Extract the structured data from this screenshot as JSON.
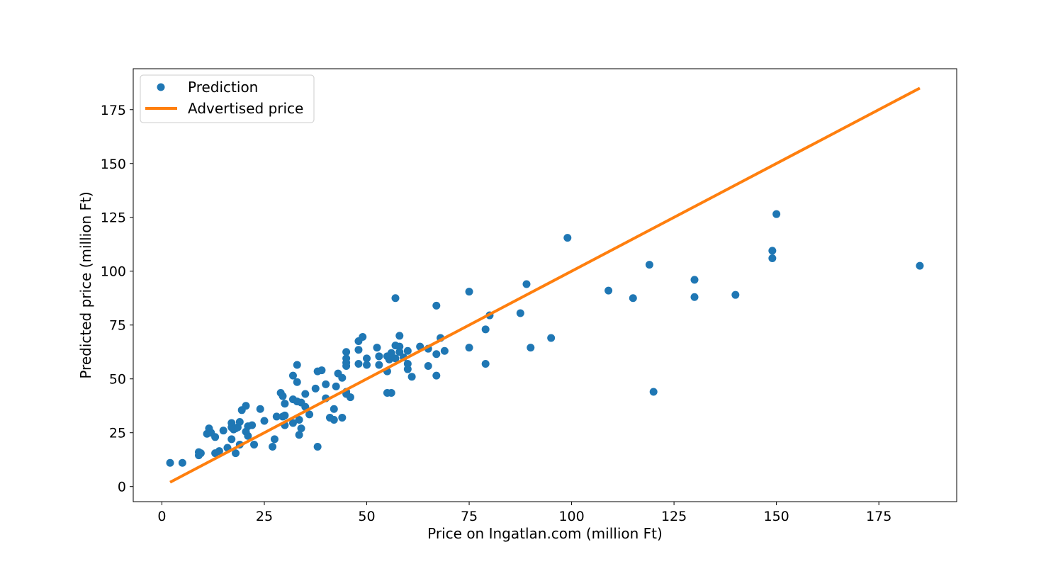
{
  "chart_data": {
    "type": "scatter",
    "title": "",
    "xlabel": "Price on Ingatlan.com (million Ft)",
    "ylabel": "Predicted price (million Ft)",
    "xlim": [
      -7,
      194
    ],
    "ylim": [
      -7,
      194
    ],
    "xticks": [
      0,
      25,
      50,
      75,
      100,
      125,
      150,
      175
    ],
    "yticks": [
      0,
      25,
      50,
      75,
      100,
      125,
      150,
      175
    ],
    "grid": false,
    "legend": {
      "placement": "upper-left",
      "entries": [
        "Prediction",
        "Advertised price"
      ]
    },
    "series": [
      {
        "name": "Prediction",
        "kind": "scatter",
        "color": "#1f77b4",
        "points": [
          [
            2,
            11
          ],
          [
            5,
            11
          ],
          [
            9,
            16
          ],
          [
            9,
            14.5
          ],
          [
            9.5,
            15.5
          ],
          [
            11,
            24.5
          ],
          [
            11.5,
            27
          ],
          [
            12,
            25
          ],
          [
            13,
            23
          ],
          [
            13,
            15.5
          ],
          [
            14,
            16.5
          ],
          [
            15,
            26
          ],
          [
            16,
            18
          ],
          [
            17,
            29.5
          ],
          [
            17,
            27.5
          ],
          [
            17,
            22
          ],
          [
            17.5,
            26.5
          ],
          [
            18,
            27
          ],
          [
            18,
            15.5
          ],
          [
            18.5,
            27.5
          ],
          [
            19,
            30
          ],
          [
            19,
            19.5
          ],
          [
            19.5,
            35.5
          ],
          [
            20.5,
            37.5
          ],
          [
            20.5,
            25.5
          ],
          [
            21,
            28
          ],
          [
            21,
            23.5
          ],
          [
            22,
            28.5
          ],
          [
            22.5,
            19.5
          ],
          [
            24,
            36
          ],
          [
            25,
            30.5
          ],
          [
            27,
            18.5
          ],
          [
            27.5,
            22
          ],
          [
            28,
            32.5
          ],
          [
            29,
            43.5
          ],
          [
            29.5,
            32.5
          ],
          [
            29.5,
            42
          ],
          [
            30,
            33
          ],
          [
            30,
            28.5
          ],
          [
            30,
            38.5
          ],
          [
            32,
            40.5
          ],
          [
            32,
            51.5
          ],
          [
            32,
            29.5
          ],
          [
            33,
            56.5
          ],
          [
            33,
            39.5
          ],
          [
            33,
            48.5
          ],
          [
            33.5,
            31
          ],
          [
            33.5,
            24
          ],
          [
            34,
            39
          ],
          [
            34,
            27
          ],
          [
            35,
            37
          ],
          [
            35,
            43
          ],
          [
            36,
            33.5
          ],
          [
            37.5,
            45.5
          ],
          [
            38,
            18.5
          ],
          [
            38,
            53.5
          ],
          [
            39,
            54
          ],
          [
            40,
            41
          ],
          [
            40,
            47.5
          ],
          [
            41,
            32
          ],
          [
            42,
            36
          ],
          [
            42,
            31
          ],
          [
            42.5,
            46.5
          ],
          [
            43,
            52.5
          ],
          [
            44,
            50.5
          ],
          [
            44,
            32
          ],
          [
            45,
            62.5
          ],
          [
            45,
            59.5
          ],
          [
            45,
            57.5
          ],
          [
            45,
            56
          ],
          [
            45,
            44
          ],
          [
            45,
            43
          ],
          [
            46,
            41.5
          ],
          [
            48,
            63.5
          ],
          [
            48,
            57
          ],
          [
            48,
            67.5
          ],
          [
            49,
            69.5
          ],
          [
            50,
            59.5
          ],
          [
            50,
            56.5
          ],
          [
            52.5,
            64.5
          ],
          [
            53,
            56.5
          ],
          [
            53,
            60.5
          ],
          [
            55,
            60.5
          ],
          [
            55,
            53.5
          ],
          [
            55,
            43.5
          ],
          [
            55.5,
            59
          ],
          [
            56,
            62
          ],
          [
            56,
            43.5
          ],
          [
            57,
            87.5
          ],
          [
            57,
            65.5
          ],
          [
            57,
            59.5
          ],
          [
            58,
            70
          ],
          [
            58,
            65
          ],
          [
            58,
            62.5
          ],
          [
            59,
            60
          ],
          [
            60,
            63
          ],
          [
            60,
            57
          ],
          [
            60,
            54.5
          ],
          [
            61,
            51
          ],
          [
            63,
            65
          ],
          [
            65,
            64
          ],
          [
            65,
            56
          ],
          [
            67,
            84
          ],
          [
            67,
            61.5
          ],
          [
            67,
            51.5
          ],
          [
            68,
            69
          ],
          [
            69,
            63
          ],
          [
            75,
            90.5
          ],
          [
            75,
            64.5
          ],
          [
            79,
            73
          ],
          [
            79,
            57
          ],
          [
            80,
            79.5
          ],
          [
            87.5,
            80.5
          ],
          [
            89,
            94
          ],
          [
            90,
            64.5
          ],
          [
            95,
            69
          ],
          [
            99,
            115.5
          ],
          [
            109,
            91
          ],
          [
            115,
            87.5
          ],
          [
            119,
            103
          ],
          [
            120,
            44
          ],
          [
            130,
            96
          ],
          [
            130,
            88
          ],
          [
            140,
            89
          ],
          [
            149,
            109.5
          ],
          [
            149,
            106
          ],
          [
            150,
            126.5
          ],
          [
            185,
            102.5
          ]
        ]
      },
      {
        "name": "Advertised price",
        "kind": "line",
        "color": "#ff7f0e",
        "points": [
          [
            2,
            2
          ],
          [
            185,
            185
          ]
        ]
      }
    ]
  }
}
